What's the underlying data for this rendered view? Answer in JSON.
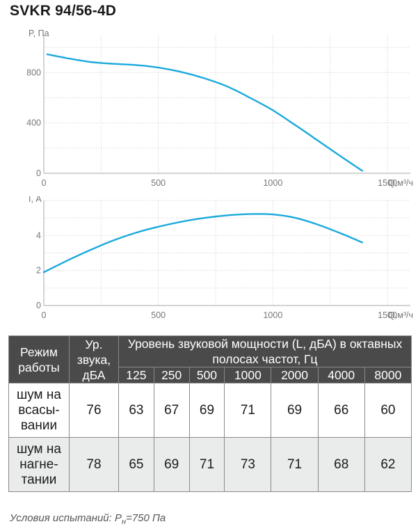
{
  "title": "SVKR 94/56-4D",
  "chart_data": [
    {
      "type": "line",
      "ylabel": "P, Па",
      "xlabel": "Q,м³/ч",
      "xlim": [
        0,
        1600
      ],
      "ylim": [
        0,
        1100
      ],
      "x_ticks": [
        "0",
        "500",
        "1000",
        "1500"
      ],
      "y_ticks": [
        "0",
        "400",
        "800"
      ],
      "y_tick_values": [
        0,
        400,
        800
      ],
      "grid": true,
      "series": [
        {
          "x": [
            15,
            100,
            200,
            300,
            400,
            500,
            600,
            700,
            800,
            900,
            1000,
            1100,
            1200,
            1300,
            1390
          ],
          "y": [
            945,
            915,
            885,
            870,
            860,
            840,
            805,
            755,
            690,
            600,
            500,
            380,
            255,
            130,
            20
          ]
        }
      ]
    },
    {
      "type": "line",
      "ylabel": "I, А",
      "xlabel": "Q,м³/ч",
      "xlim": [
        0,
        1600
      ],
      "ylim": [
        0,
        6
      ],
      "x_ticks": [
        "0",
        "500",
        "1000",
        "1500"
      ],
      "y_ticks": [
        "0",
        "2",
        "4"
      ],
      "y_tick_values": [
        0,
        2,
        4
      ],
      "grid": true,
      "series": [
        {
          "x": [
            0,
            100,
            200,
            300,
            400,
            500,
            600,
            700,
            800,
            900,
            1000,
            1100,
            1200,
            1300,
            1390
          ],
          "y": [
            1.9,
            2.55,
            3.15,
            3.7,
            4.15,
            4.5,
            4.78,
            5.0,
            5.15,
            5.22,
            5.2,
            5.0,
            4.6,
            4.1,
            3.6
          ]
        }
      ]
    }
  ],
  "table": {
    "head": {
      "mode": "Режим работы",
      "level": "Ур. звука, дБА",
      "power": "Уровень звуковой мощности (L, дБА) в октавных полосах частот, Гц",
      "freqs": [
        "125",
        "250",
        "500",
        "1000",
        "2000",
        "4000",
        "8000"
      ]
    },
    "rows": [
      {
        "mode": "шум на всасы-вании",
        "values": [
          "76",
          "63",
          "67",
          "69",
          "71",
          "69",
          "66",
          "60"
        ]
      },
      {
        "mode": "шум на нагне-тании",
        "values": [
          "78",
          "65",
          "69",
          "71",
          "73",
          "71",
          "68",
          "62"
        ]
      }
    ]
  },
  "note": {
    "prefix": "Условия испытаний: P",
    "sub": "н",
    "suffix": "=750 Па"
  },
  "colors": {
    "curve": "#1aa9dc",
    "header_bg": "#4a4a4a",
    "row_alt": "#e9eceb"
  }
}
